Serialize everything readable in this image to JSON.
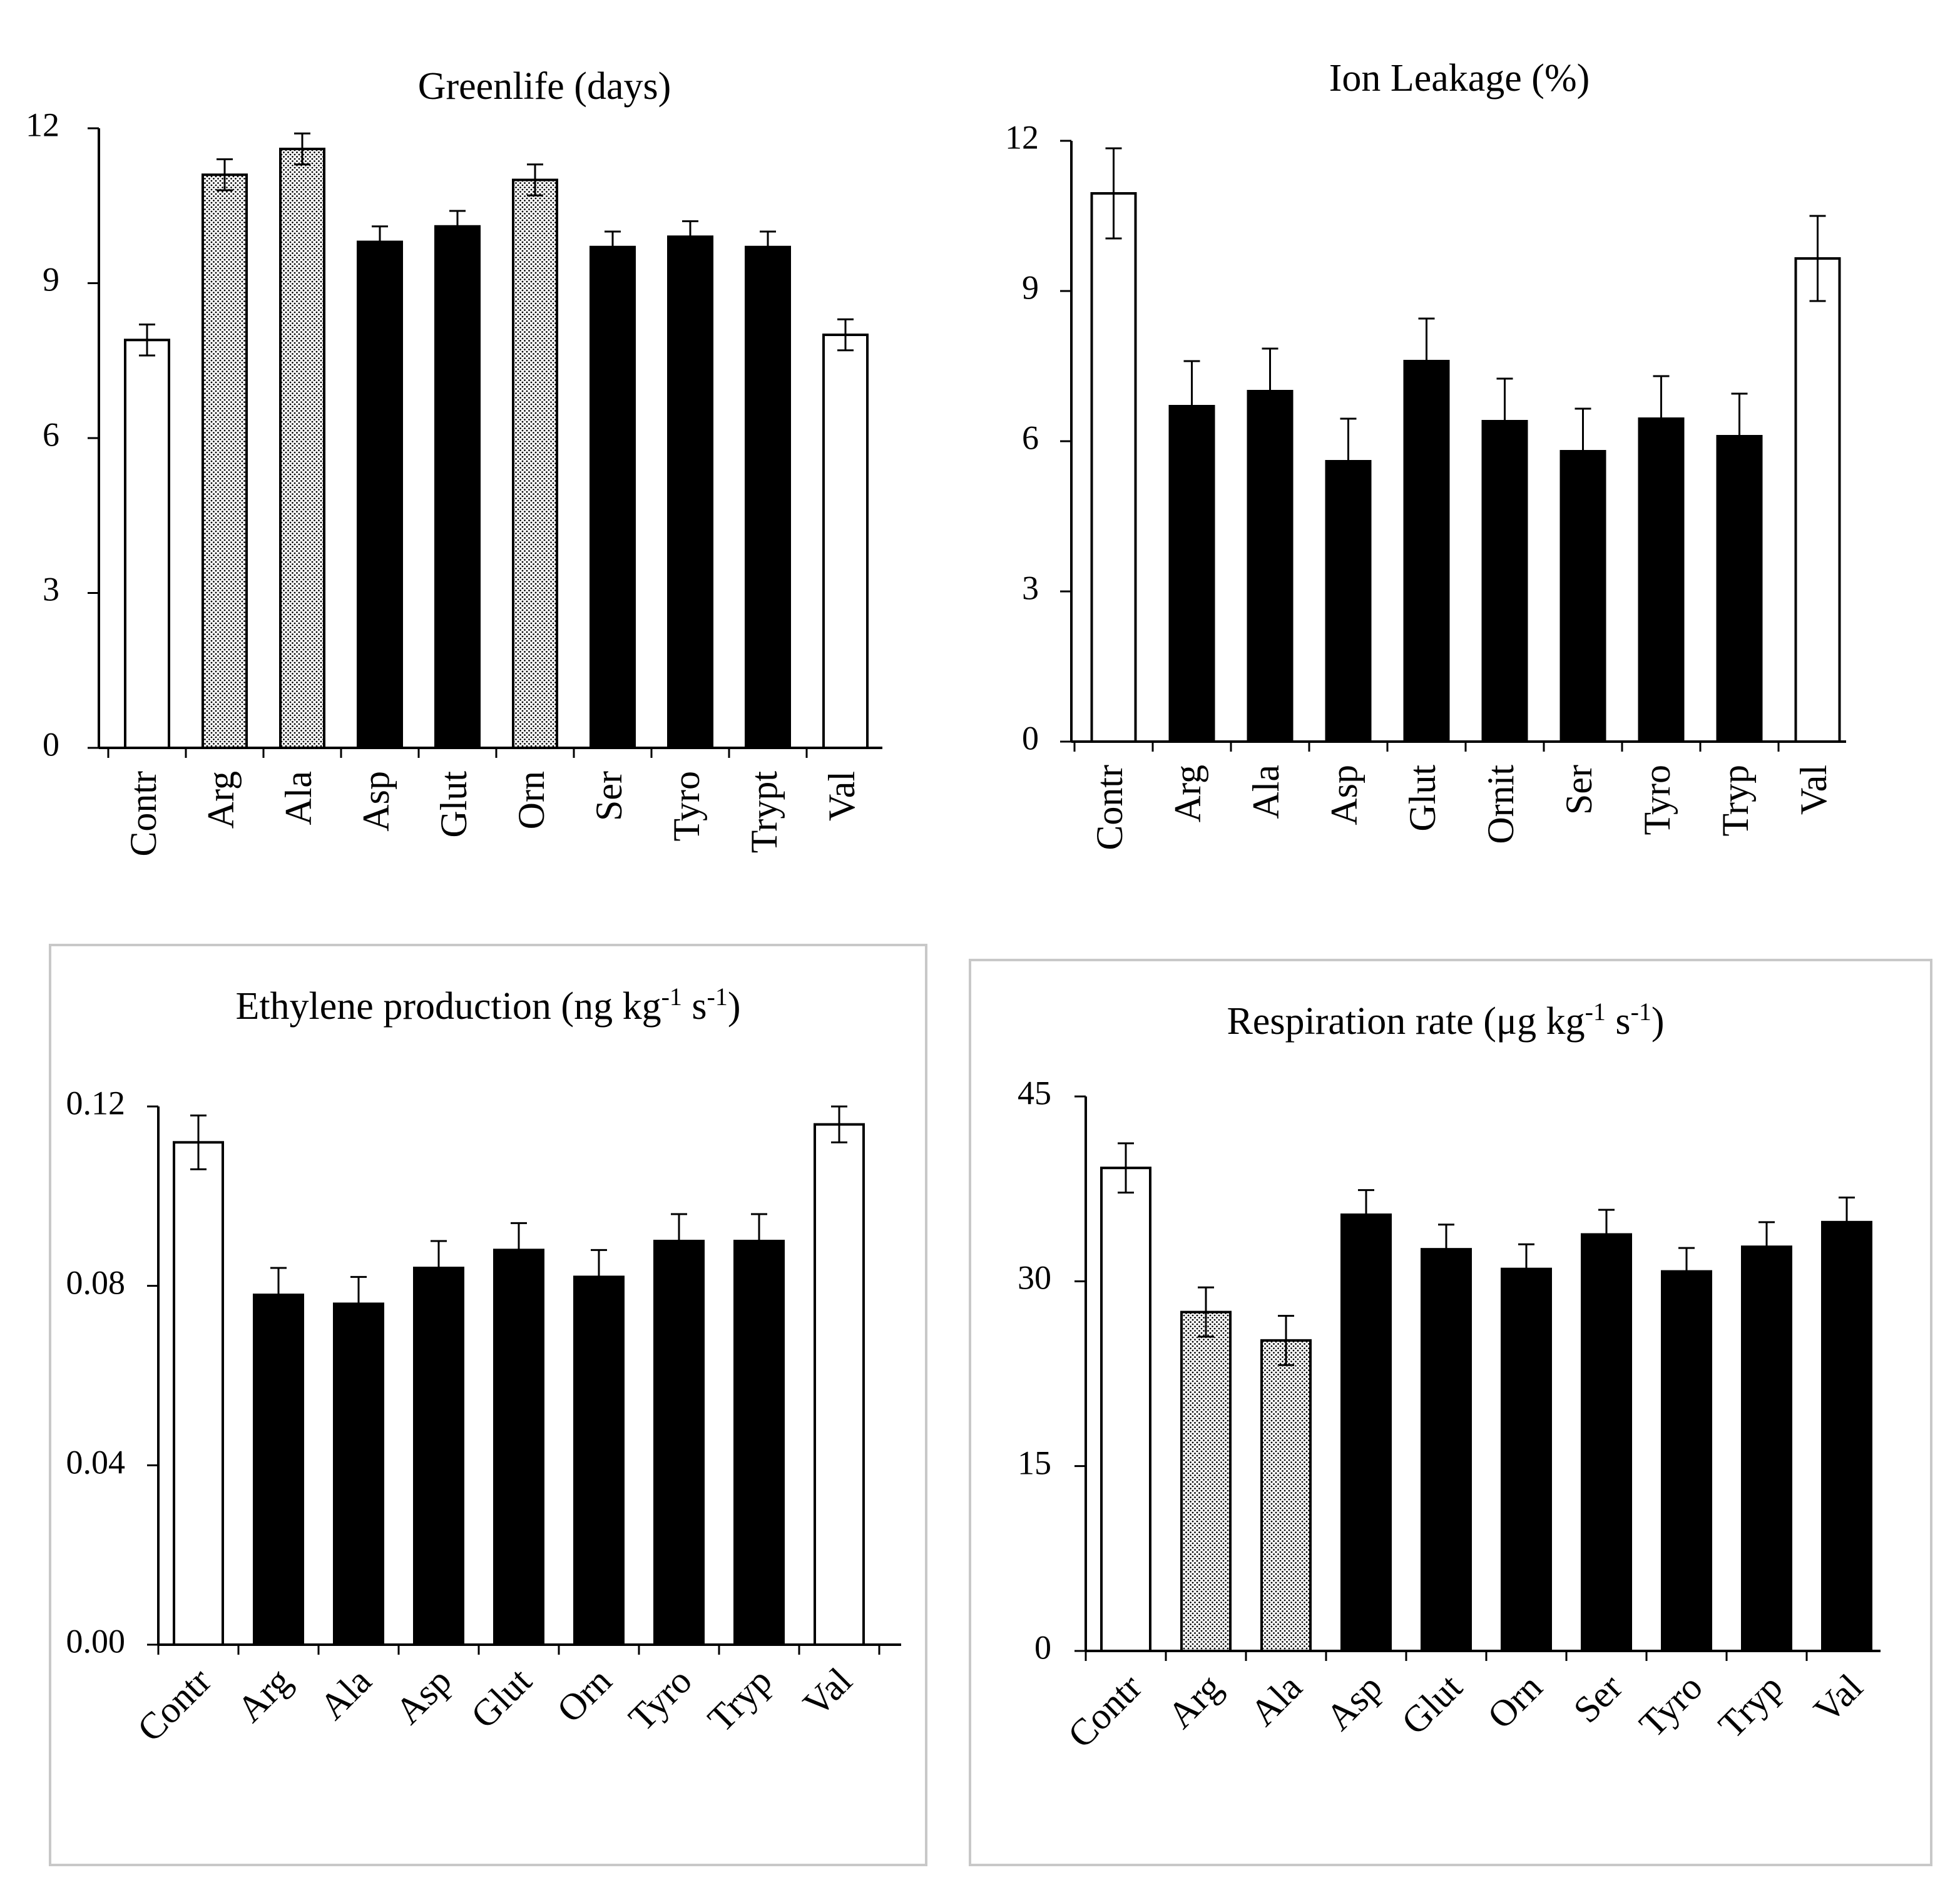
{
  "chart_data": [
    {
      "type": "bar",
      "title": "Greenlife (days)",
      "categories": [
        "Contr",
        "Arg",
        "Ala",
        "Asp",
        "Glut",
        "Orn",
        "Ser",
        "Tyro",
        "Trypt",
        "Val"
      ],
      "values": [
        7.9,
        11.1,
        11.6,
        9.8,
        10.1,
        11.0,
        9.7,
        9.9,
        9.7,
        8.0
      ],
      "errors": [
        0.3,
        0.3,
        0.3,
        0.3,
        0.3,
        0.3,
        0.3,
        0.3,
        0.3,
        0.3
      ],
      "fills": [
        "white",
        "dotted",
        "dotted",
        "black",
        "black",
        "dotted",
        "black",
        "black",
        "black",
        "white"
      ],
      "yticks": [
        "0",
        "3",
        "6",
        "9",
        "12"
      ],
      "ylim": [
        0,
        12
      ],
      "label_rotation": -90,
      "boxed": false
    },
    {
      "type": "bar",
      "title": "Ion Leakage (%)",
      "categories": [
        "Contr",
        "Arg",
        "Ala",
        "Asp",
        "Glut",
        "Ornit",
        "Ser",
        "Tyro",
        "Tryp",
        "Val"
      ],
      "values": [
        10.95,
        6.7,
        7.0,
        5.6,
        7.6,
        6.4,
        5.8,
        6.45,
        6.1,
        9.65
      ],
      "errors": [
        0.9,
        0.9,
        0.85,
        0.85,
        0.85,
        0.85,
        0.85,
        0.85,
        0.85,
        0.85
      ],
      "fills": [
        "white",
        "black",
        "black",
        "black",
        "black",
        "black",
        "black",
        "black",
        "black",
        "white"
      ],
      "yticks": [
        "0",
        "3",
        "6",
        "9",
        "12"
      ],
      "ylim": [
        0,
        12
      ],
      "label_rotation": -90,
      "boxed": false
    },
    {
      "type": "bar",
      "title": "Ethylene production (ng kg",
      "title_sup1": "-1",
      "title_mid": " s",
      "title_sup2": "-1",
      "title_end": ")",
      "categories": [
        "Contr",
        "Arg",
        "Ala",
        "Asp",
        "Glut",
        "Orn",
        "Tyro",
        "Tryp",
        "Val"
      ],
      "values": [
        0.112,
        0.078,
        0.076,
        0.084,
        0.088,
        0.082,
        0.09,
        0.09,
        0.116
      ],
      "errors": [
        0.006,
        0.006,
        0.006,
        0.006,
        0.006,
        0.006,
        0.006,
        0.006,
        0.004
      ],
      "fills": [
        "white",
        "black",
        "black",
        "black",
        "black",
        "black",
        "black",
        "black",
        "white"
      ],
      "yticks": [
        "0.00",
        "0.04",
        "0.08",
        "0.12"
      ],
      "ylim": [
        0,
        0.12
      ],
      "label_rotation": -45,
      "boxed": true
    },
    {
      "type": "bar",
      "title": "Respiration rate (μg kg",
      "title_sup1": "-1",
      "title_mid": " s",
      "title_sup2": "-1",
      "title_end": ")",
      "categories": [
        "Contr",
        "Arg",
        "Ala",
        "Asp",
        "Glut",
        "Orn",
        "Ser",
        "Tyro",
        "Tryp",
        "Val"
      ],
      "values": [
        39.2,
        27.5,
        25.2,
        35.4,
        32.6,
        31.0,
        33.8,
        30.8,
        32.8,
        34.8
      ],
      "errors": [
        2.0,
        2.0,
        2.0,
        2.0,
        2.0,
        2.0,
        2.0,
        1.9,
        2.0,
        2.0
      ],
      "fills": [
        "white",
        "dotted",
        "dotted",
        "black",
        "black",
        "black",
        "black",
        "black",
        "black",
        "black"
      ],
      "yticks": [
        "0",
        "15",
        "30",
        "45"
      ],
      "ylim": [
        0,
        45
      ],
      "label_rotation": -45,
      "boxed": true
    }
  ]
}
